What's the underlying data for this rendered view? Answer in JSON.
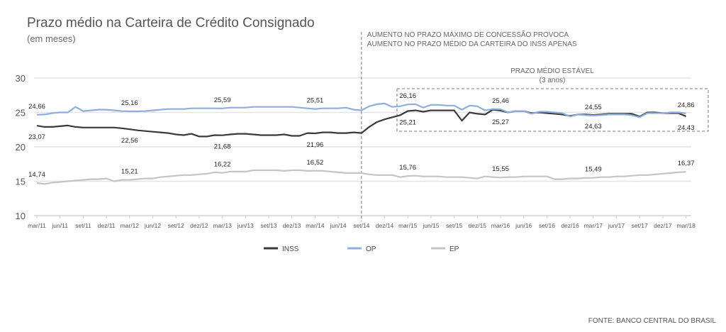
{
  "chart_data": {
    "type": "line",
    "title": "Prazo médio na Carteira de Crédito Consignado",
    "subtitle": "(em meses)",
    "source": "FONTE: BANCO CENTRAL DO BRASIL",
    "ylim": [
      10,
      30
    ],
    "yticks": [
      "10",
      "15",
      "20",
      "25",
      "30"
    ],
    "ytick_values": [
      10,
      15,
      20,
      25,
      30
    ],
    "grid": true,
    "legend_position": "bottom-center",
    "x_tick_labels": [
      "mar/11",
      "jun/11",
      "set/11",
      "dez/11",
      "mar/12",
      "jun/12",
      "set/12",
      "dez/12",
      "mar/13",
      "jun/13",
      "set/13",
      "dez/13",
      "mar/14",
      "jun/14",
      "set/14",
      "dez/14",
      "mar/15",
      "jun/15",
      "set/15",
      "dez/15",
      "mar/16",
      "jun/16",
      "set/16",
      "dez/16",
      "mar/17",
      "jun/17",
      "set/17",
      "dez/17",
      "mar/18"
    ],
    "x_start": "mar/11",
    "x_end": "mar/18",
    "frequency": "monthly",
    "series": [
      {
        "name": "INSS",
        "color": "#3a3a3a",
        "label_pos": "below",
        "values": [
          23.07,
          22.9,
          22.9,
          23.0,
          23.1,
          22.9,
          22.8,
          22.8,
          22.8,
          22.8,
          22.8,
          22.7,
          22.56,
          22.4,
          22.3,
          22.2,
          22.1,
          22.0,
          21.8,
          21.7,
          21.9,
          21.5,
          21.5,
          21.7,
          21.68,
          21.8,
          21.9,
          21.9,
          21.8,
          21.7,
          21.7,
          21.7,
          21.8,
          21.6,
          21.6,
          22.0,
          21.96,
          22.1,
          22.1,
          22.0,
          22.0,
          22.1,
          22.0,
          22.9,
          23.6,
          24.0,
          24.3,
          24.6,
          25.21,
          25.3,
          25.1,
          25.3,
          25.3,
          25.3,
          25.3,
          23.8,
          25.0,
          24.8,
          24.7,
          25.4,
          25.27,
          25.0,
          25.2,
          25.2,
          24.9,
          25.0,
          24.9,
          24.8,
          24.7,
          24.5,
          24.7,
          24.7,
          24.63,
          24.7,
          24.8,
          24.8,
          24.8,
          24.8,
          24.4,
          25.0,
          25.0,
          24.9,
          24.9,
          24.9,
          24.43
        ],
        "data_labels": [
          {
            "index": 0,
            "text": "23,07"
          },
          {
            "index": 12,
            "text": "22,56"
          },
          {
            "index": 24,
            "text": "21,68"
          },
          {
            "index": 36,
            "text": "21,96"
          },
          {
            "index": 48,
            "text": "25,21"
          },
          {
            "index": 60,
            "text": "25,27"
          },
          {
            "index": 72,
            "text": "24,63"
          },
          {
            "index": 84,
            "text": "24,43"
          }
        ]
      },
      {
        "name": "OP",
        "color": "#8eaedc",
        "label_pos": "above",
        "values": [
          24.66,
          24.7,
          24.9,
          25.0,
          25.0,
          25.8,
          25.2,
          25.3,
          25.4,
          25.4,
          25.3,
          25.2,
          25.16,
          25.16,
          25.2,
          25.3,
          25.4,
          25.5,
          25.5,
          25.5,
          25.6,
          25.6,
          25.6,
          25.6,
          25.59,
          25.7,
          25.7,
          25.7,
          25.8,
          25.8,
          25.8,
          25.8,
          25.8,
          25.8,
          25.7,
          25.6,
          25.51,
          25.6,
          25.6,
          25.6,
          25.7,
          25.4,
          25.3,
          25.9,
          26.2,
          26.3,
          25.8,
          25.9,
          26.16,
          26.2,
          25.7,
          26.1,
          26.1,
          26.0,
          26.0,
          25.4,
          26.0,
          25.9,
          25.3,
          25.5,
          25.46,
          25.0,
          25.2,
          25.2,
          24.8,
          25.1,
          25.1,
          25.0,
          24.9,
          24.4,
          24.7,
          24.6,
          24.55,
          24.6,
          24.7,
          24.7,
          24.7,
          24.6,
          24.3,
          24.9,
          24.9,
          24.9,
          25.0,
          25.0,
          24.86
        ],
        "data_labels": [
          {
            "index": 0,
            "text": "24,66"
          },
          {
            "index": 12,
            "text": "25,16"
          },
          {
            "index": 24,
            "text": "25,59"
          },
          {
            "index": 36,
            "text": "25,51"
          },
          {
            "index": 48,
            "text": "26,16"
          },
          {
            "index": 60,
            "text": "25,46"
          },
          {
            "index": 72,
            "text": "24,55"
          },
          {
            "index": 84,
            "text": "24,86"
          }
        ]
      },
      {
        "name": "EP",
        "color": "#c4c4c4",
        "label_pos": "above",
        "values": [
          14.74,
          14.6,
          14.8,
          14.9,
          15.0,
          15.1,
          15.2,
          15.3,
          15.3,
          15.4,
          15.0,
          15.2,
          15.21,
          15.3,
          15.4,
          15.4,
          15.6,
          15.7,
          15.8,
          15.9,
          15.9,
          16.0,
          16.1,
          16.3,
          16.22,
          16.4,
          16.4,
          16.4,
          16.6,
          16.6,
          16.6,
          16.6,
          16.5,
          16.6,
          16.6,
          16.5,
          16.52,
          16.5,
          16.4,
          16.3,
          16.2,
          16.2,
          16.2,
          16.0,
          15.9,
          15.9,
          15.9,
          15.6,
          15.76,
          15.8,
          15.7,
          15.7,
          15.7,
          15.6,
          15.6,
          15.6,
          15.5,
          15.4,
          15.7,
          15.6,
          15.55,
          15.6,
          15.6,
          15.7,
          15.7,
          15.7,
          15.7,
          15.3,
          15.3,
          15.4,
          15.4,
          15.5,
          15.49,
          15.6,
          15.6,
          15.7,
          15.7,
          15.8,
          15.9,
          15.9,
          16.0,
          16.1,
          16.2,
          16.3,
          16.37
        ],
        "data_labels": [
          {
            "index": 0,
            "text": "14,74"
          },
          {
            "index": 12,
            "text": "15,21"
          },
          {
            "index": 24,
            "text": "16,22"
          },
          {
            "index": 36,
            "text": "16,52"
          },
          {
            "index": 48,
            "text": "15,76"
          },
          {
            "index": 60,
            "text": "15,55"
          },
          {
            "index": 72,
            "text": "15,49"
          },
          {
            "index": 84,
            "text": "16,37"
          }
        ]
      }
    ],
    "annotations": [
      {
        "name": "policy-change",
        "at_index": 42,
        "lines": [
          "AUMENTO NO PRAZO MÁXIMO DE CONCESSÃO PROVOCA",
          "AUMENTO NO PRAZO MÉDIO DA CARTEIRA DO INSS APENAS"
        ]
      },
      {
        "name": "stable-period",
        "lines": [
          "PRAZO MÉDIO ESTÁVEL",
          "(3 anos)"
        ]
      }
    ]
  }
}
